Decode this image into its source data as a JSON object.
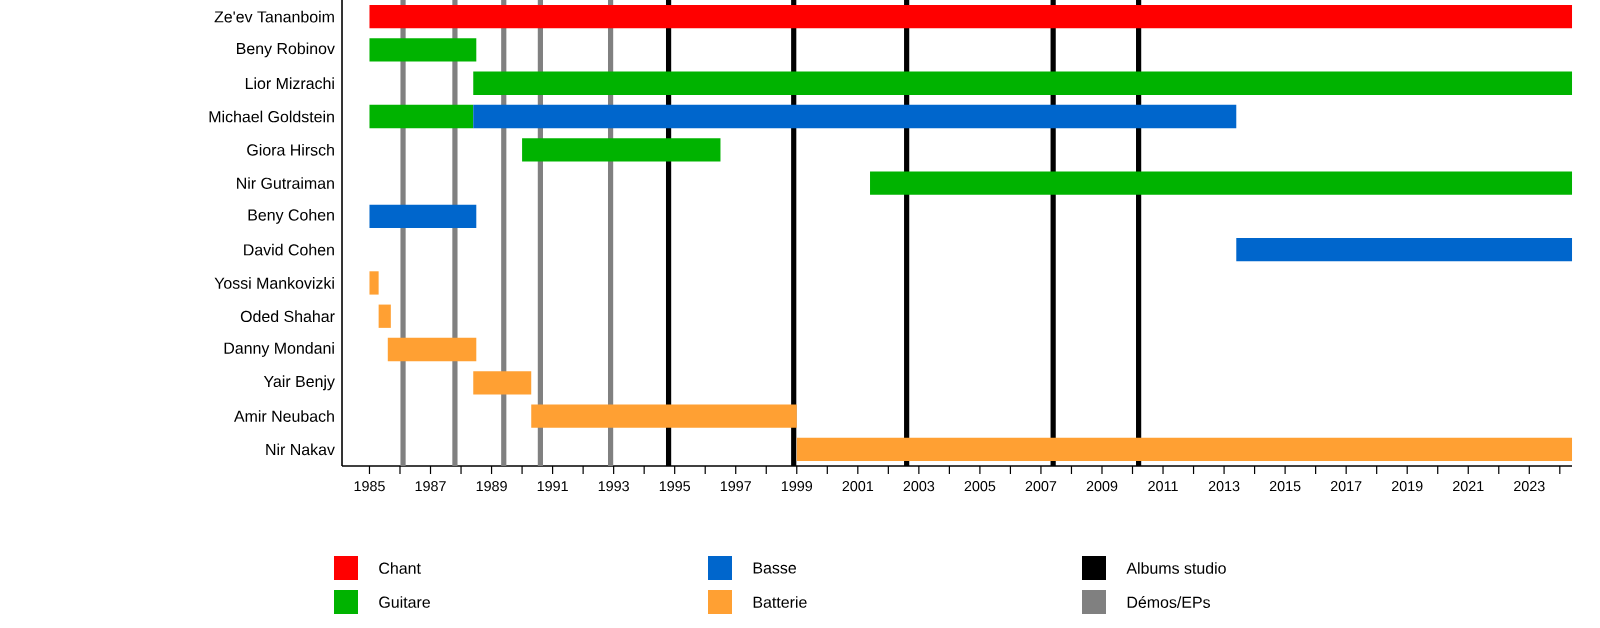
{
  "chart_data": {
    "type": "bar",
    "orientation": "horizontal",
    "categories": [
      "Ze'ev Tananboim",
      "Beny Robinov",
      "Lior Mizrachi",
      "Michael Goldstein",
      "Giora Hirsch",
      "Nir Gutraiman",
      "Beny Cohen",
      "David Cohen",
      "Yossi Mankovizki",
      "Oded Shahar",
      "Danny Mondani",
      "Yair Benjy",
      "Amir Neubach",
      "Nir Nakav"
    ],
    "series": [
      {
        "name": "Chant",
        "color": "#ff0000",
        "base": [
          1985,
          null,
          null,
          null,
          null,
          null,
          null,
          null,
          null,
          null,
          null,
          null,
          null,
          null
        ],
        "values": [
          39.4,
          null,
          null,
          null,
          null,
          null,
          null,
          null,
          null,
          null,
          null,
          null,
          null,
          null
        ]
      },
      {
        "name": "Guitare",
        "color": "#00b300",
        "base": [
          null,
          1985,
          1988.4,
          1985,
          1990,
          2001.4,
          null,
          null,
          null,
          null,
          null,
          null,
          null,
          null
        ],
        "values": [
          null,
          3.5,
          36.0,
          3.4,
          6.5,
          23.0,
          null,
          null,
          null,
          null,
          null,
          null,
          null,
          null
        ]
      },
      {
        "name": "Basse",
        "color": "#0066cc",
        "base": [
          null,
          null,
          null,
          1988.4,
          null,
          null,
          1985,
          2013.4,
          null,
          null,
          null,
          null,
          null,
          null
        ],
        "values": [
          null,
          null,
          null,
          25.0,
          null,
          null,
          3.5,
          11.0,
          null,
          null,
          null,
          null,
          null,
          null
        ]
      },
      {
        "name": "Batterie",
        "color": "#ffa033",
        "base": [
          null,
          null,
          null,
          null,
          null,
          null,
          null,
          null,
          1985,
          1985.3,
          1985.6,
          1988.4,
          1990.3,
          1999
        ],
        "values": [
          null,
          null,
          null,
          null,
          null,
          null,
          null,
          null,
          0.3,
          0.4,
          2.9,
          1.9,
          8.7,
          25.4
        ]
      }
    ],
    "xlim": [
      1984.1,
      2024.4
    ],
    "xticks": [
      1985,
      {
        "value": 1986,
        "label": null
      },
      1987,
      {
        "value": 1988,
        "label": null
      },
      1989,
      {
        "value": 1990,
        "label": null
      },
      1991,
      {
        "value": 1992,
        "label": null
      },
      1993,
      {
        "value": 1994,
        "label": null
      },
      1995,
      {
        "value": 1996,
        "label": null
      },
      1997,
      {
        "value": 1998,
        "label": null
      },
      1999,
      {
        "value": 2000,
        "label": null
      },
      2001,
      {
        "value": 2002,
        "label": null
      },
      2003,
      {
        "value": 2004,
        "label": null
      },
      2005,
      {
        "value": 2006,
        "label": null
      },
      2007,
      {
        "value": 2008,
        "label": null
      },
      2009,
      {
        "value": 2010,
        "label": null
      },
      2011,
      {
        "value": 2012,
        "label": null
      },
      2013,
      {
        "value": 2014,
        "label": null
      },
      2015,
      {
        "value": 2016,
        "label": null
      },
      2017,
      {
        "value": 2018,
        "label": null
      },
      2019,
      {
        "value": 2020,
        "label": null
      },
      2021,
      {
        "value": 2022,
        "label": null
      },
      2023,
      {
        "value": 2024,
        "label": null
      }
    ],
    "ref_lines": [
      {
        "axis": "x",
        "value": 1994.8,
        "color": "#000000",
        "label": "Albums studio"
      },
      {
        "axis": "x",
        "value": 1998.9,
        "color": "#000000",
        "label": null
      },
      {
        "axis": "x",
        "value": 2002.6,
        "color": "#000000",
        "label": null
      },
      {
        "axis": "x",
        "value": 2007.4,
        "color": "#000000",
        "label": null
      },
      {
        "axis": "x",
        "value": 2010.2,
        "color": "#000000",
        "label": null
      },
      {
        "axis": "x",
        "value": 1986.1,
        "color": "#808080",
        "label": "Démos/EPs"
      },
      {
        "axis": "x",
        "value": 1987.8,
        "color": "#808080",
        "label": null
      },
      {
        "axis": "x",
        "value": 1989.4,
        "color": "#808080",
        "label": null
      },
      {
        "axis": "x",
        "value": 1990.6,
        "color": "#808080",
        "label": null
      },
      {
        "axis": "x",
        "value": 1992.9,
        "color": "#808080",
        "label": null
      }
    ],
    "legend": "bottom"
  }
}
